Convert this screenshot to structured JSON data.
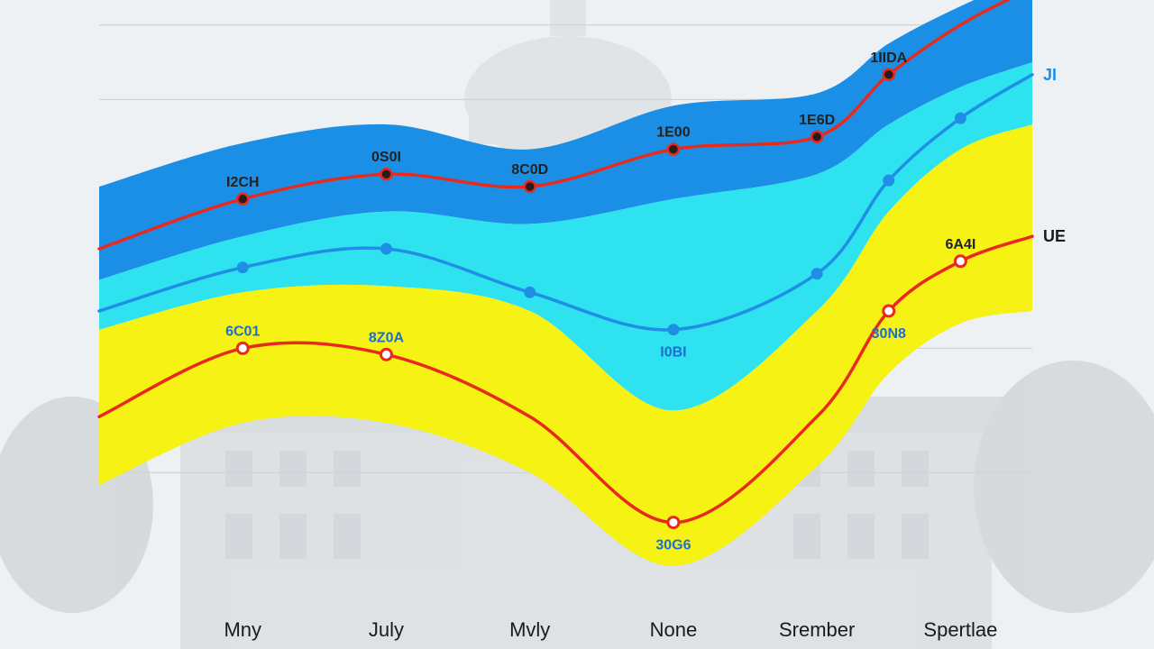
{
  "chart_data": {
    "type": "area",
    "title": "",
    "xlabel": "",
    "ylabel": "",
    "categories": [
      "Mny",
      "July",
      "Mvly",
      "None",
      "Srember",
      "Spertlae"
    ],
    "tick_x": [
      0.5,
      1.5,
      2.5,
      3.5,
      4.5,
      5.5
    ],
    "xlim": [
      -0.5,
      6.0
    ],
    "ylim": [
      0,
      100
    ],
    "grid": true,
    "gridlines_y": [
      24,
      44,
      84,
      96
    ],
    "colors": {
      "band_dark_blue": "#1b8fe6",
      "band_cyan": "#2ee2f0",
      "band_yellow": "#f5f214",
      "line_red": "#e82a1e",
      "line_blue": "#1f8fe6",
      "marker_dark": "#2a1b1b",
      "label_dark": "#222222",
      "label_blue": "#1c6fd0"
    },
    "bands": [
      {
        "name": "",
        "color": "band_dark_blue",
        "upper": {
          "x": [
            -0.5,
            0.5,
            1.5,
            2.5,
            3.5,
            4.5,
            5.0,
            5.5,
            6.0
          ],
          "y": [
            70,
            77,
            80,
            76,
            83,
            85,
            93,
            99,
            104
          ]
        },
        "lower": {
          "x": [
            -0.5,
            0.5,
            1.5,
            2.5,
            3.5,
            4.5,
            5.0,
            5.5,
            6.0
          ],
          "y": [
            55,
            62,
            66,
            64,
            68,
            72,
            80,
            86,
            90
          ]
        }
      },
      {
        "name": "",
        "color": "band_cyan",
        "upper": {
          "x": [
            -0.5,
            0.5,
            1.5,
            2.5,
            3.5,
            4.5,
            5.0,
            5.5,
            6.0
          ],
          "y": [
            55,
            62,
            66,
            64,
            68,
            72,
            80,
            86,
            90
          ]
        },
        "lower": {
          "x": [
            -0.5,
            0.5,
            1.5,
            2.5,
            3.5,
            4.5,
            5.0,
            5.5,
            6.0
          ],
          "y": [
            47,
            53,
            54,
            50,
            34,
            50,
            66,
            76,
            80
          ]
        }
      },
      {
        "name": "",
        "color": "band_yellow",
        "upper": {
          "x": [
            -0.5,
            0.5,
            1.5,
            2.5,
            3.5,
            4.5,
            5.0,
            5.5,
            6.0
          ],
          "y": [
            47,
            53,
            54,
            50,
            34,
            50,
            66,
            76,
            80
          ]
        },
        "lower": {
          "x": [
            -0.5,
            0.5,
            1.5,
            2.5,
            3.5,
            4.5,
            5.0,
            5.5,
            6.0
          ],
          "y": [
            22,
            32,
            32,
            24,
            9,
            25,
            40,
            48,
            50
          ]
        }
      }
    ],
    "series": [
      {
        "name": "",
        "end_label": "",
        "color": "line_red",
        "marker_style": "dark",
        "x": [
          -0.5,
          0.5,
          1.5,
          2.5,
          3.5,
          4.5,
          5.0,
          5.5,
          6.0
        ],
        "y": [
          60,
          68,
          72,
          70,
          76,
          78,
          88,
          96,
          102
        ],
        "labels": [
          {
            "x": 0.5,
            "text": "I2CH",
            "color": "label_dark"
          },
          {
            "x": 1.5,
            "text": "0S0I",
            "color": "label_dark"
          },
          {
            "x": 2.5,
            "text": "8C0D",
            "color": "label_dark"
          },
          {
            "x": 3.5,
            "text": "1E00",
            "color": "label_dark"
          },
          {
            "x": 4.5,
            "text": "1E6D",
            "color": "label_dark"
          },
          {
            "x": 5.0,
            "text": "1IIDA",
            "color": "label_dark"
          }
        ],
        "marker_x": [
          0.5,
          1.5,
          2.5,
          3.5,
          4.5,
          5.0
        ]
      },
      {
        "name": "",
        "end_label": "JI",
        "color": "line_blue",
        "marker_style": "blue",
        "x": [
          -0.5,
          0.5,
          1.5,
          2.5,
          3.5,
          4.5,
          5.0,
          5.5,
          6.0
        ],
        "y": [
          50,
          57,
          60,
          53,
          47,
          56,
          71,
          81,
          88
        ],
        "labels": [
          {
            "x": 3.5,
            "text": "I0BI",
            "color": "label_blue"
          }
        ],
        "marker_x": [
          0.5,
          1.5,
          2.5,
          3.5,
          4.5,
          5.0,
          5.5
        ]
      },
      {
        "name": "",
        "end_label": "UE",
        "color": "line_red",
        "marker_style": "hollow",
        "x": [
          -0.5,
          0.5,
          1.5,
          2.5,
          3.5,
          4.5,
          5.0,
          5.5,
          6.0
        ],
        "y": [
          33,
          44,
          43,
          33,
          16,
          33,
          50,
          58,
          62
        ],
        "labels": [
          {
            "x": 0.5,
            "text": "6C01",
            "color": "label_blue"
          },
          {
            "x": 1.5,
            "text": "8Z0A",
            "color": "label_blue"
          },
          {
            "x": 3.5,
            "text": "30G6",
            "color": "label_blue"
          },
          {
            "x": 5.0,
            "text": "30N8",
            "color": "label_blue"
          },
          {
            "x": 5.5,
            "text": "6A4I",
            "color": "label_dark"
          }
        ],
        "marker_x": [
          0.5,
          1.5,
          3.5,
          5.0,
          5.5
        ]
      }
    ]
  }
}
